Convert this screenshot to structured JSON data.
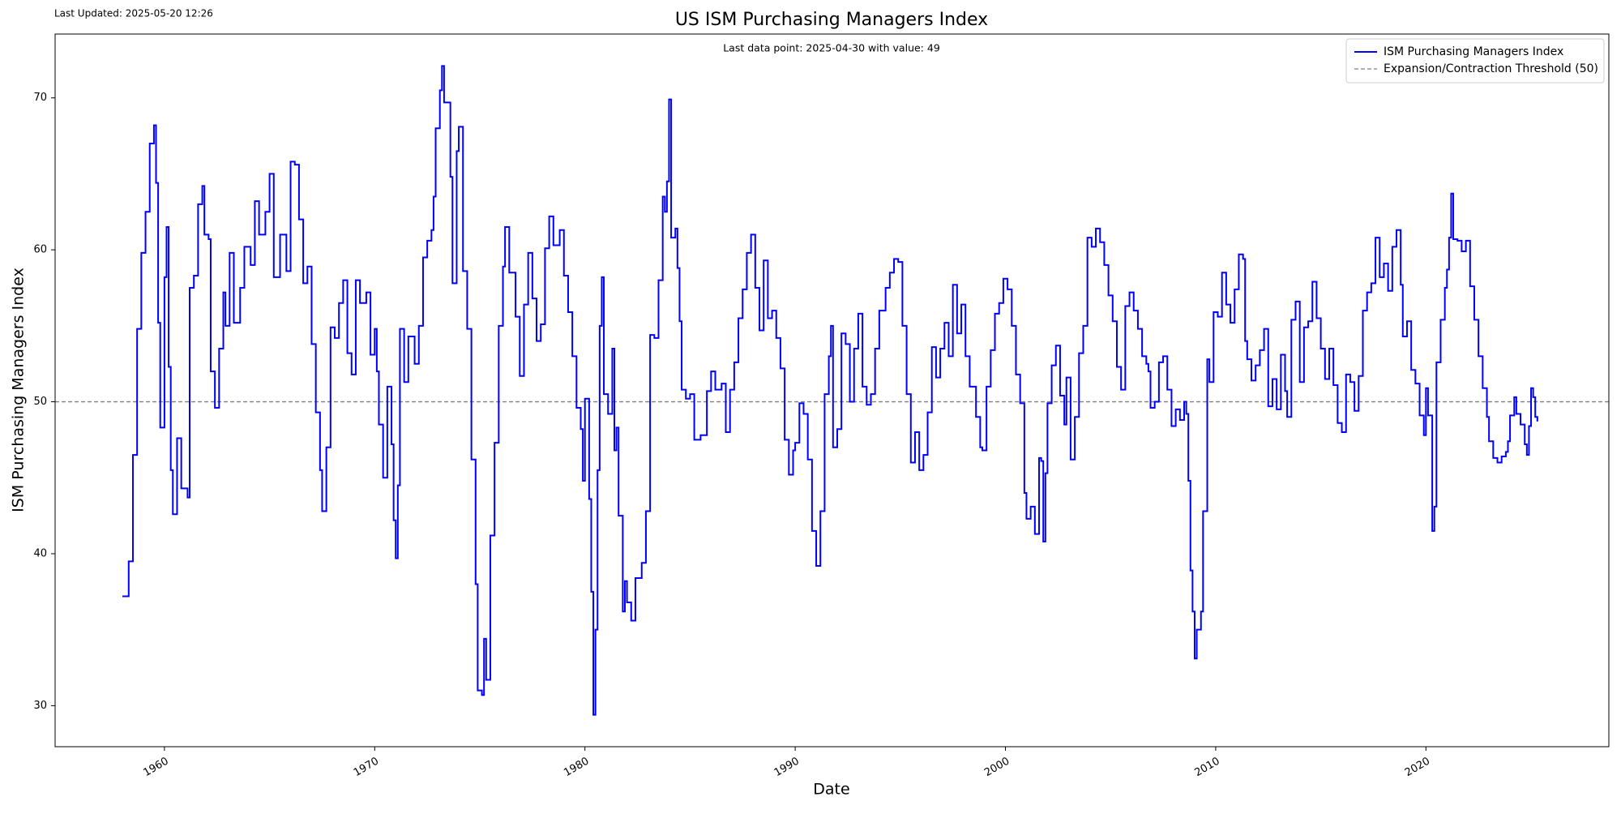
{
  "last_updated": "Last Updated: 2025-05-20 12:26",
  "chart_data": {
    "type": "line",
    "title": "US ISM Purchasing Managers Index",
    "annotation": "Last data point: 2025-04-30 with value: 49",
    "x_label": "Date",
    "y_label": "ISM Purchasing Managers Index",
    "xlim": [
      1954.8,
      2028.7
    ],
    "ylim": [
      27.3,
      74.2
    ],
    "xticks": [
      1960,
      1970,
      1980,
      1990,
      2000,
      2010,
      2020
    ],
    "yticks": [
      30,
      40,
      50,
      60,
      70
    ],
    "legend": "upper right",
    "drawstyle": "steps-post",
    "threshold": {
      "name": "Expansion/Contraction Threshold (50)",
      "value": 50,
      "color": "gray"
    },
    "x": [
      1958.0,
      1958.3,
      1958.5,
      1958.7,
      1958.9,
      1959.1,
      1959.3,
      1959.5,
      1959.6,
      1959.7,
      1959.8,
      1960.0,
      1960.1,
      1960.2,
      1960.3,
      1960.4,
      1960.6,
      1960.8,
      1961.1,
      1961.2,
      1961.4,
      1961.6,
      1961.8,
      1961.9,
      1962.1,
      1962.2,
      1962.4,
      1962.6,
      1962.8,
      1962.9,
      1963.1,
      1963.3,
      1963.6,
      1963.8,
      1964.1,
      1964.3,
      1964.5,
      1964.8,
      1965.0,
      1965.2,
      1965.5,
      1965.8,
      1966.0,
      1966.2,
      1966.4,
      1966.6,
      1966.8,
      1967.0,
      1967.2,
      1967.4,
      1967.5,
      1967.7,
      1967.9,
      1968.1,
      1968.3,
      1968.5,
      1968.7,
      1968.9,
      1969.1,
      1969.3,
      1969.6,
      1969.8,
      1970.0,
      1970.1,
      1970.2,
      1970.4,
      1970.6,
      1970.8,
      1970.9,
      1971.0,
      1971.1,
      1971.2,
      1971.4,
      1971.6,
      1971.9,
      1972.1,
      1972.3,
      1972.5,
      1972.7,
      1972.8,
      1972.9,
      1973.1,
      1973.2,
      1973.3,
      1973.6,
      1973.7,
      1973.9,
      1974.0,
      1974.2,
      1974.4,
      1974.6,
      1974.8,
      1974.9,
      1975.1,
      1975.2,
      1975.3,
      1975.5,
      1975.7,
      1975.9,
      1976.1,
      1976.2,
      1976.4,
      1976.7,
      1976.9,
      1977.1,
      1977.3,
      1977.5,
      1977.7,
      1977.9,
      1978.1,
      1978.3,
      1978.5,
      1978.8,
      1979.0,
      1979.2,
      1979.4,
      1979.6,
      1979.8,
      1979.9,
      1980.0,
      1980.2,
      1980.3,
      1980.4,
      1980.5,
      1980.6,
      1980.7,
      1980.8,
      1980.9,
      1981.1,
      1981.3,
      1981.4,
      1981.5,
      1981.6,
      1981.8,
      1981.9,
      1982.0,
      1982.2,
      1982.4,
      1982.7,
      1982.9,
      1983.1,
      1983.3,
      1983.5,
      1983.7,
      1983.8,
      1983.9,
      1984.0,
      1984.1,
      1984.3,
      1984.4,
      1984.5,
      1984.6,
      1984.8,
      1985.0,
      1985.2,
      1985.5,
      1985.8,
      1986.0,
      1986.2,
      1986.5,
      1986.7,
      1986.9,
      1987.1,
      1987.3,
      1987.5,
      1987.7,
      1987.9,
      1988.1,
      1988.3,
      1988.5,
      1988.7,
      1988.9,
      1989.1,
      1989.3,
      1989.5,
      1989.7,
      1989.9,
      1990.0,
      1990.2,
      1990.4,
      1990.6,
      1990.8,
      1991.0,
      1991.2,
      1991.4,
      1991.6,
      1991.7,
      1991.8,
      1992.0,
      1992.2,
      1992.4,
      1992.6,
      1992.8,
      1993.0,
      1993.2,
      1993.4,
      1993.6,
      1993.8,
      1994.0,
      1994.3,
      1994.5,
      1994.7,
      1994.9,
      1995.1,
      1995.3,
      1995.5,
      1995.7,
      1995.9,
      1996.1,
      1996.3,
      1996.5,
      1996.7,
      1996.9,
      1997.1,
      1997.3,
      1997.5,
      1997.7,
      1997.9,
      1998.1,
      1998.3,
      1998.6,
      1998.8,
      1998.9,
      1999.1,
      1999.3,
      1999.5,
      1999.7,
      1999.9,
      2000.1,
      2000.3,
      2000.5,
      2000.7,
      2000.9,
      2001.0,
      2001.2,
      2001.4,
      2001.6,
      2001.7,
      2001.8,
      2001.9,
      2002.0,
      2002.2,
      2002.4,
      2002.6,
      2002.8,
      2002.9,
      2003.1,
      2003.3,
      2003.5,
      2003.7,
      2003.9,
      2004.1,
      2004.3,
      2004.5,
      2004.7,
      2004.9,
      2005.1,
      2005.3,
      2005.5,
      2005.7,
      2005.9,
      2006.1,
      2006.3,
      2006.5,
      2006.7,
      2006.8,
      2006.9,
      2007.1,
      2007.3,
      2007.5,
      2007.7,
      2007.9,
      2008.1,
      2008.3,
      2008.5,
      2008.6,
      2008.7,
      2008.8,
      2008.9,
      2009.0,
      2009.1,
      2009.3,
      2009.4,
      2009.6,
      2009.7,
      2009.9,
      2010.1,
      2010.3,
      2010.5,
      2010.7,
      2010.9,
      2011.1,
      2011.3,
      2011.4,
      2011.5,
      2011.7,
      2011.9,
      2012.1,
      2012.3,
      2012.5,
      2012.7,
      2012.9,
      2013.1,
      2013.3,
      2013.4,
      2013.6,
      2013.8,
      2014.0,
      2014.2,
      2014.4,
      2014.6,
      2014.8,
      2015.0,
      2015.2,
      2015.4,
      2015.6,
      2015.8,
      2016.0,
      2016.2,
      2016.4,
      2016.6,
      2016.8,
      2017.0,
      2017.2,
      2017.4,
      2017.6,
      2017.8,
      2018.0,
      2018.2,
      2018.4,
      2018.6,
      2018.8,
      2018.9,
      2019.1,
      2019.3,
      2019.5,
      2019.7,
      2019.9,
      2020.0,
      2020.1,
      2020.3,
      2020.4,
      2020.5,
      2020.7,
      2020.9,
      2021.0,
      2021.1,
      2021.2,
      2021.3,
      2021.5,
      2021.7,
      2021.9,
      2022.1,
      2022.3,
      2022.5,
      2022.7,
      2022.9,
      2023.0,
      2023.2,
      2023.4,
      2023.6,
      2023.8,
      2023.9,
      2024.0,
      2024.2,
      2024.3,
      2024.5,
      2024.7,
      2024.8,
      2024.9,
      2025.0,
      2025.1,
      2025.2,
      2025.3
    ],
    "series": [
      {
        "name": "ISM Purchasing Managers Index",
        "color": "blue",
        "values": [
          37.2,
          39.5,
          46.5,
          54.8,
          59.8,
          62.5,
          67.0,
          68.2,
          64.4,
          55.2,
          48.3,
          58.2,
          61.5,
          52.3,
          45.5,
          42.6,
          47.6,
          44.3,
          43.7,
          57.5,
          58.3,
          63.0,
          64.2,
          61.0,
          60.7,
          52.0,
          49.6,
          53.5,
          57.2,
          55.0,
          59.8,
          55.2,
          57.5,
          60.2,
          59.0,
          63.2,
          61.0,
          62.5,
          65.0,
          58.2,
          61.0,
          58.6,
          65.8,
          65.6,
          62.0,
          57.8,
          58.9,
          53.8,
          49.3,
          45.5,
          42.8,
          47.0,
          54.9,
          54.2,
          56.5,
          58.0,
          53.2,
          51.8,
          58.0,
          56.5,
          57.2,
          53.1,
          54.8,
          52.0,
          48.5,
          45.0,
          51.0,
          47.2,
          42.2,
          39.7,
          44.5,
          54.8,
          51.3,
          54.3,
          52.5,
          55.0,
          59.5,
          60.6,
          61.3,
          63.5,
          68.0,
          70.5,
          72.1,
          69.7,
          64.8,
          57.8,
          66.5,
          68.1,
          58.6,
          54.8,
          46.2,
          38.0,
          31.0,
          30.7,
          34.4,
          31.7,
          41.2,
          47.3,
          55.0,
          58.9,
          61.5,
          58.5,
          55.6,
          51.7,
          56.4,
          59.8,
          56.8,
          54.0,
          55.1,
          60.1,
          62.2,
          60.3,
          61.3,
          58.3,
          55.9,
          53.0,
          49.6,
          48.2,
          44.8,
          50.2,
          43.6,
          37.5,
          29.4,
          35.0,
          45.5,
          55.0,
          58.2,
          50.5,
          49.2,
          53.5,
          46.8,
          48.3,
          42.5,
          36.2,
          38.2,
          36.8,
          35.6,
          38.4,
          39.4,
          42.8,
          54.4,
          54.2,
          58.0,
          63.5,
          62.5,
          64.5,
          69.9,
          60.8,
          61.4,
          58.8,
          55.3,
          50.8,
          50.2,
          50.5,
          47.5,
          47.8,
          50.7,
          52.0,
          50.8,
          51.2,
          48.0,
          50.8,
          52.6,
          55.5,
          57.4,
          59.8,
          61.0,
          57.5,
          54.7,
          59.3,
          55.5,
          56.0,
          54.2,
          52.2,
          47.5,
          45.2,
          46.8,
          47.3,
          49.9,
          49.2,
          46.2,
          41.5,
          39.2,
          42.8,
          50.5,
          53.0,
          55.0,
          47.0,
          48.2,
          54.5,
          53.8,
          50.0,
          53.5,
          55.8,
          51.0,
          49.8,
          50.5,
          53.5,
          56.0,
          57.5,
          58.5,
          59.4,
          59.2,
          55.0,
          50.5,
          46.0,
          48.0,
          45.5,
          46.5,
          49.3,
          53.6,
          51.6,
          53.5,
          55.2,
          53.0,
          57.7,
          54.5,
          56.4,
          53.0,
          51.0,
          49.0,
          47.0,
          46.8,
          51.0,
          53.4,
          55.8,
          56.5,
          58.1,
          57.4,
          55.0,
          51.8,
          49.9,
          44.0,
          42.3,
          43.1,
          41.3,
          46.3,
          46.1,
          40.8,
          45.3,
          49.9,
          52.4,
          53.7,
          50.4,
          48.5,
          51.6,
          46.2,
          49.0,
          53.2,
          55.0,
          60.8,
          60.2,
          61.4,
          60.5,
          59.0,
          57.0,
          55.3,
          52.3,
          50.8,
          56.3,
          57.2,
          56.0,
          54.8,
          53.0,
          52.5,
          52.0,
          49.6,
          50.0,
          52.6,
          53.0,
          50.8,
          48.4,
          49.5,
          48.8,
          50.0,
          49.2,
          44.8,
          38.9,
          36.2,
          33.1,
          35.0,
          36.2,
          42.8,
          52.8,
          51.3,
          55.9,
          55.6,
          58.5,
          56.4,
          55.2,
          57.4,
          59.7,
          59.4,
          54.0,
          52.8,
          51.4,
          52.4,
          53.4,
          54.8,
          49.7,
          51.5,
          49.5,
          53.1,
          50.7,
          49.0,
          55.4,
          56.6,
          51.3,
          54.9,
          55.3,
          57.9,
          55.5,
          53.5,
          51.5,
          53.5,
          51.1,
          48.6,
          48.0,
          51.8,
          51.3,
          49.4,
          51.7,
          56.0,
          57.2,
          57.8,
          60.8,
          58.2,
          59.1,
          57.3,
          60.2,
          61.3,
          57.7,
          54.3,
          55.3,
          52.1,
          51.2,
          49.1,
          47.8,
          50.9,
          49.1,
          41.5,
          43.1,
          52.6,
          55.4,
          57.5,
          58.7,
          60.8,
          63.7,
          60.7,
          60.6,
          59.9,
          60.6,
          57.6,
          55.4,
          53.0,
          50.9,
          49.0,
          47.4,
          46.3,
          46.0,
          46.4,
          46.7,
          47.4,
          49.1,
          50.3,
          49.2,
          48.5,
          47.2,
          46.5,
          48.4,
          50.9,
          50.3,
          49.0,
          48.7
        ]
      }
    ]
  }
}
